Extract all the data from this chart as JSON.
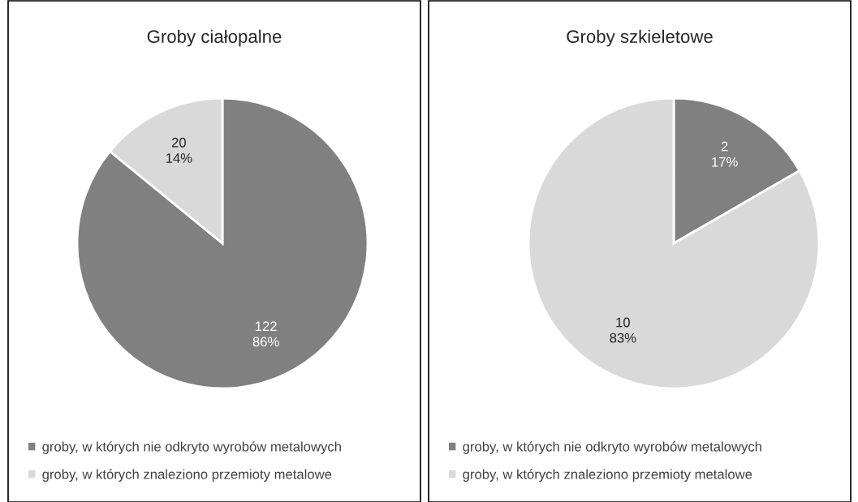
{
  "chart_data": [
    {
      "type": "pie",
      "title": "Groby ciałopalne",
      "categories": [
        "groby, w których nie odkryto wyrobów metalowych",
        "groby, w których znaleziono przemioty metalowe"
      ],
      "values": [
        122,
        20
      ],
      "colors": [
        "#808080",
        "#d9d9d9"
      ],
      "value_labels": [
        "122\n86%",
        "20\n14%"
      ],
      "legend": "bottom"
    },
    {
      "type": "pie",
      "title": "Groby szkieletowe",
      "categories": [
        "groby, w których nie odkryto wyrobów metalowych",
        "groby, w których znaleziono przemioty metalowe"
      ],
      "values": [
        2,
        10
      ],
      "colors": [
        "#808080",
        "#d9d9d9"
      ],
      "value_labels": [
        "2\n17%",
        "10\n83%"
      ],
      "legend": "bottom"
    }
  ]
}
